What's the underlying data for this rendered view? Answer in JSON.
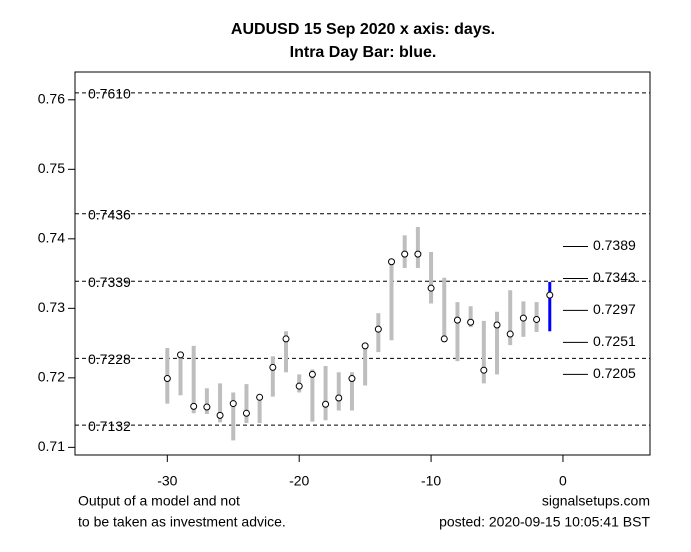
{
  "chart_data": {
    "type": "hilo",
    "title": "AUDUSD 15 Sep 2020 x axis: days.",
    "subtitle": "Intra Day Bar: blue.",
    "x": [
      -30,
      -29,
      -28,
      -27,
      -26,
      -25,
      -24,
      -23,
      -22,
      -21,
      -20,
      -19,
      -18,
      -17,
      -16,
      -15,
      -14,
      -13,
      -12,
      -11,
      -10,
      -9,
      -8,
      -7,
      -6,
      -5,
      -4,
      -3,
      -2,
      -1
    ],
    "series": [
      {
        "name": "high",
        "values": [
          0.7243,
          0.7237,
          0.7246,
          0.7185,
          0.7192,
          0.7179,
          0.7191,
          0.7173,
          0.7231,
          0.7267,
          0.7205,
          0.7212,
          0.7217,
          0.7208,
          0.7208,
          0.7246,
          0.7293,
          0.7369,
          0.7405,
          0.7417,
          0.7381,
          0.7344,
          0.7309,
          0.7303,
          0.7282,
          0.7295,
          0.7326,
          0.731,
          0.7309,
          0.7338
        ]
      },
      {
        "name": "low",
        "values": [
          0.7163,
          0.7175,
          0.7149,
          0.7148,
          0.7136,
          0.711,
          0.7135,
          0.7135,
          0.7173,
          0.7208,
          0.7179,
          0.7137,
          0.7139,
          0.7153,
          0.7153,
          0.7189,
          0.7237,
          0.7254,
          0.7358,
          0.7358,
          0.7307,
          0.7254,
          0.7224,
          0.7273,
          0.7192,
          0.7205,
          0.7247,
          0.7259,
          0.7266,
          0.7267
        ]
      },
      {
        "name": "close",
        "values": [
          0.7199,
          0.7233,
          0.7159,
          0.7158,
          0.7146,
          0.7163,
          0.7149,
          0.7172,
          0.7215,
          0.7256,
          0.7188,
          0.7205,
          0.7162,
          0.7171,
          0.7199,
          0.7246,
          0.727,
          0.7367,
          0.7378,
          0.7378,
          0.7329,
          0.7256,
          0.7283,
          0.728,
          0.7211,
          0.7276,
          0.7263,
          0.7286,
          0.7284,
          0.7319
        ]
      }
    ],
    "bar_color": "#bebebe",
    "intraday_color": "#0000ff",
    "xlim": [
      -37,
      6.6
    ],
    "xticks": [
      -30,
      -20,
      -10,
      0
    ],
    "ylim": [
      0.7089,
      0.764
    ],
    "yticks": [
      0.71,
      0.72,
      0.73,
      0.74,
      0.75,
      0.76
    ],
    "levels": [
      {
        "value": 0.761,
        "label": "0.7610"
      },
      {
        "value": 0.7436,
        "label": "0.7436"
      },
      {
        "value": 0.7339,
        "label": "0.7339"
      },
      {
        "value": 0.7228,
        "label": "0.7228"
      },
      {
        "value": 0.7132,
        "label": "0.7132"
      }
    ],
    "targets": [
      {
        "value": 0.7389,
        "label": "0.7389"
      },
      {
        "value": 0.7343,
        "label": "0.7343"
      },
      {
        "value": 0.7297,
        "label": "0.7297"
      },
      {
        "value": 0.7251,
        "label": "0.7251"
      },
      {
        "value": 0.7205,
        "label": "0.7205"
      }
    ],
    "footnote_left": [
      "Output of a model and not",
      "to be taken as investment advice."
    ],
    "footnote_right": [
      "signalsetups.com",
      "posted: 2020-09-15 10:05:41 BST"
    ]
  }
}
